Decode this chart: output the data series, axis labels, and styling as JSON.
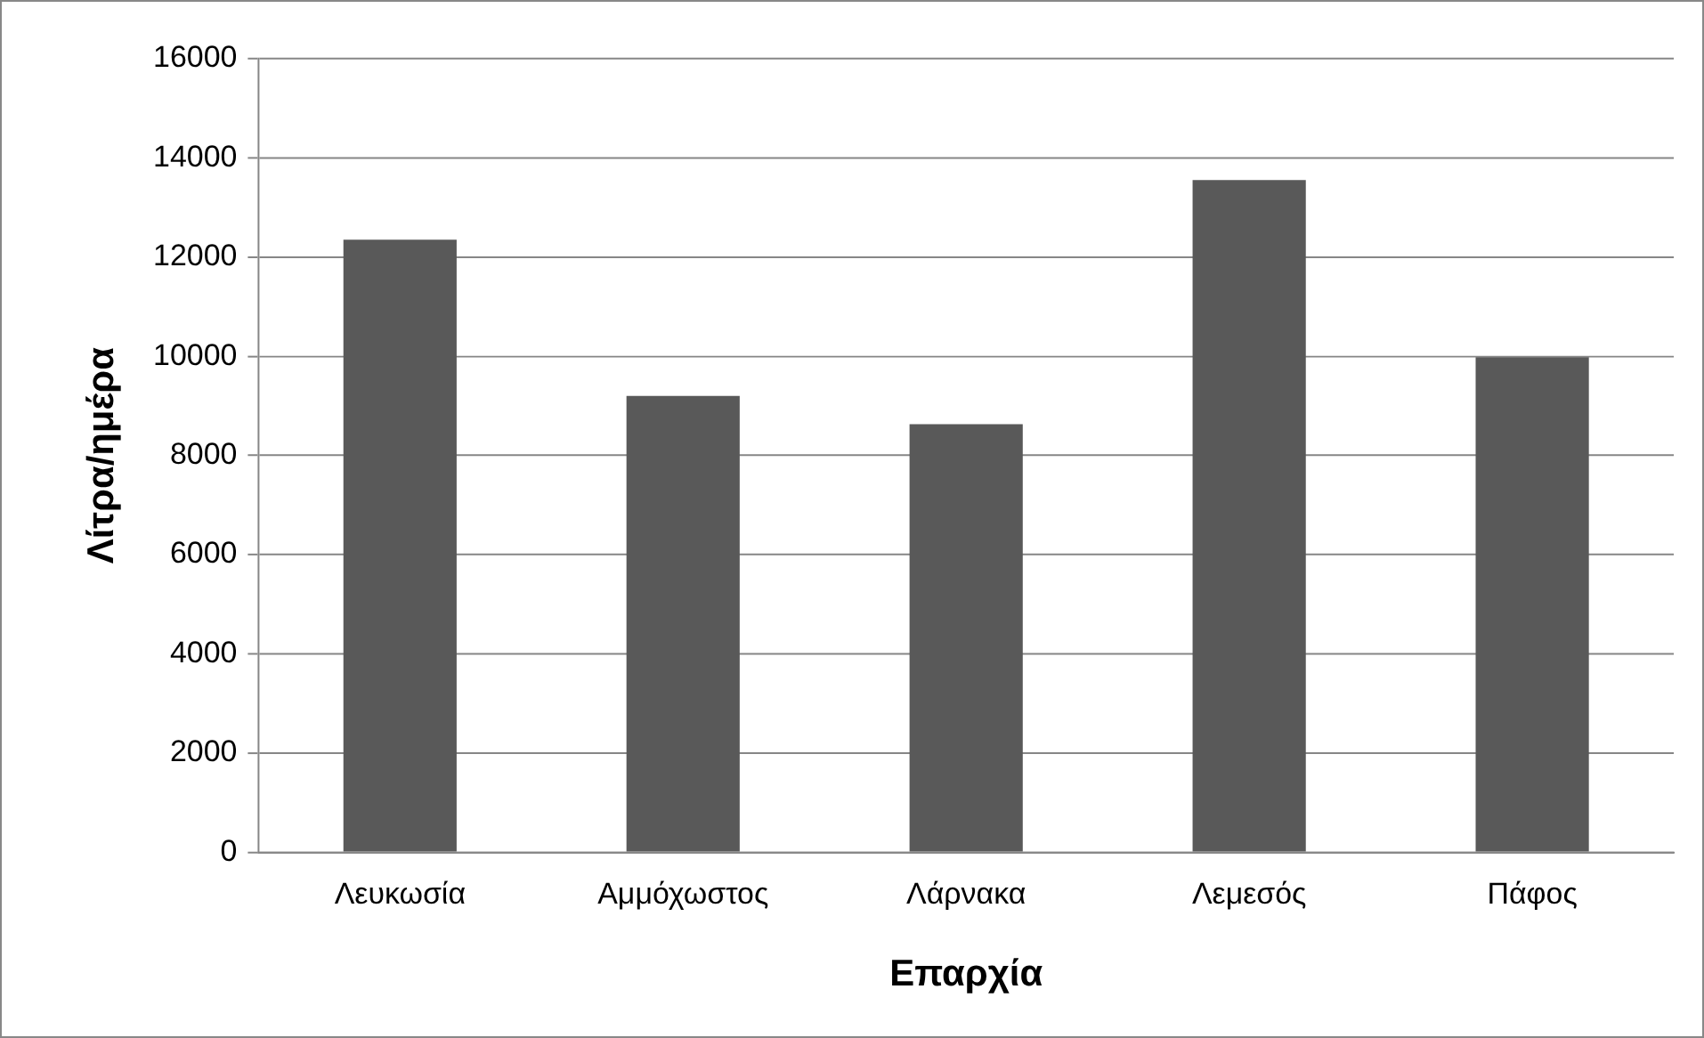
{
  "chart_data": {
    "type": "bar",
    "xlabel": "Επαρχία",
    "ylabel": "Λίτρα/ημέρα",
    "categories": [
      "Λευκωσία",
      "Αμμόχωστος",
      "Λάρνακα",
      "Λεμεσός",
      "Πάφος"
    ],
    "values": [
      12350,
      9200,
      8630,
      13550,
      9980
    ],
    "color": "#595959",
    "ylim": [
      0,
      16000
    ],
    "yticks": [
      0,
      2000,
      4000,
      6000,
      8000,
      10000,
      12000,
      14000,
      16000
    ],
    "grid": "y"
  }
}
